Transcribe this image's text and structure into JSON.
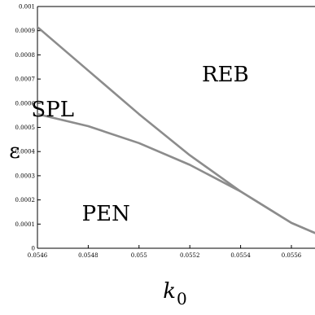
{
  "chart_data": {
    "type": "line",
    "title": "",
    "xlabel": "k",
    "xlabel_sub": "0",
    "ylabel": "ε",
    "xlim": [
      0.0546,
      0.0557
    ],
    "ylim": [
      0,
      0.001
    ],
    "x_ticks": [
      0.0546,
      0.0548,
      0.055,
      0.0552,
      0.0554,
      0.0556
    ],
    "x_tick_labels": [
      "0.0546",
      "0.0548",
      "0.055",
      "0.0552",
      "0.0554",
      "0.0556"
    ],
    "y_ticks": [
      0,
      0.0001,
      0.0002,
      0.0003,
      0.0004,
      0.0005,
      0.0006,
      0.0007,
      0.0008,
      0.0009,
      0.001
    ],
    "y_tick_labels": [
      "0",
      "0.0001",
      "0.0002",
      "0.0003",
      "0.0004",
      "0.0005",
      "0.0006",
      "0.0007",
      "0.0008",
      "0.0009",
      "0.001"
    ],
    "grid": false,
    "series": [
      {
        "x": [
          0.0546,
          0.0548,
          0.055,
          0.0552,
          0.0554,
          0.0556,
          0.0557
        ],
        "y": [
          0.000915,
          0.000735,
          0.000555,
          0.000385,
          0.000235,
          0.000105,
          6e-05
        ]
      },
      {
        "x": [
          0.0546,
          0.0548,
          0.055,
          0.0552,
          0.0554,
          0.0556,
          0.0557
        ],
        "y": [
          0.000555,
          0.000505,
          0.000435,
          0.000345,
          0.000235,
          0.000105,
          6e-05
        ]
      }
    ],
    "region_labels": [
      {
        "text": "REB",
        "x": 0.05534,
        "y": 0.00069
      },
      {
        "text": "SPL",
        "x": 0.05466,
        "y": 0.000545
      },
      {
        "text": "PEN",
        "x": 0.05487,
        "y": 0.000115
      }
    ],
    "line_color": "#8c8c8c"
  }
}
